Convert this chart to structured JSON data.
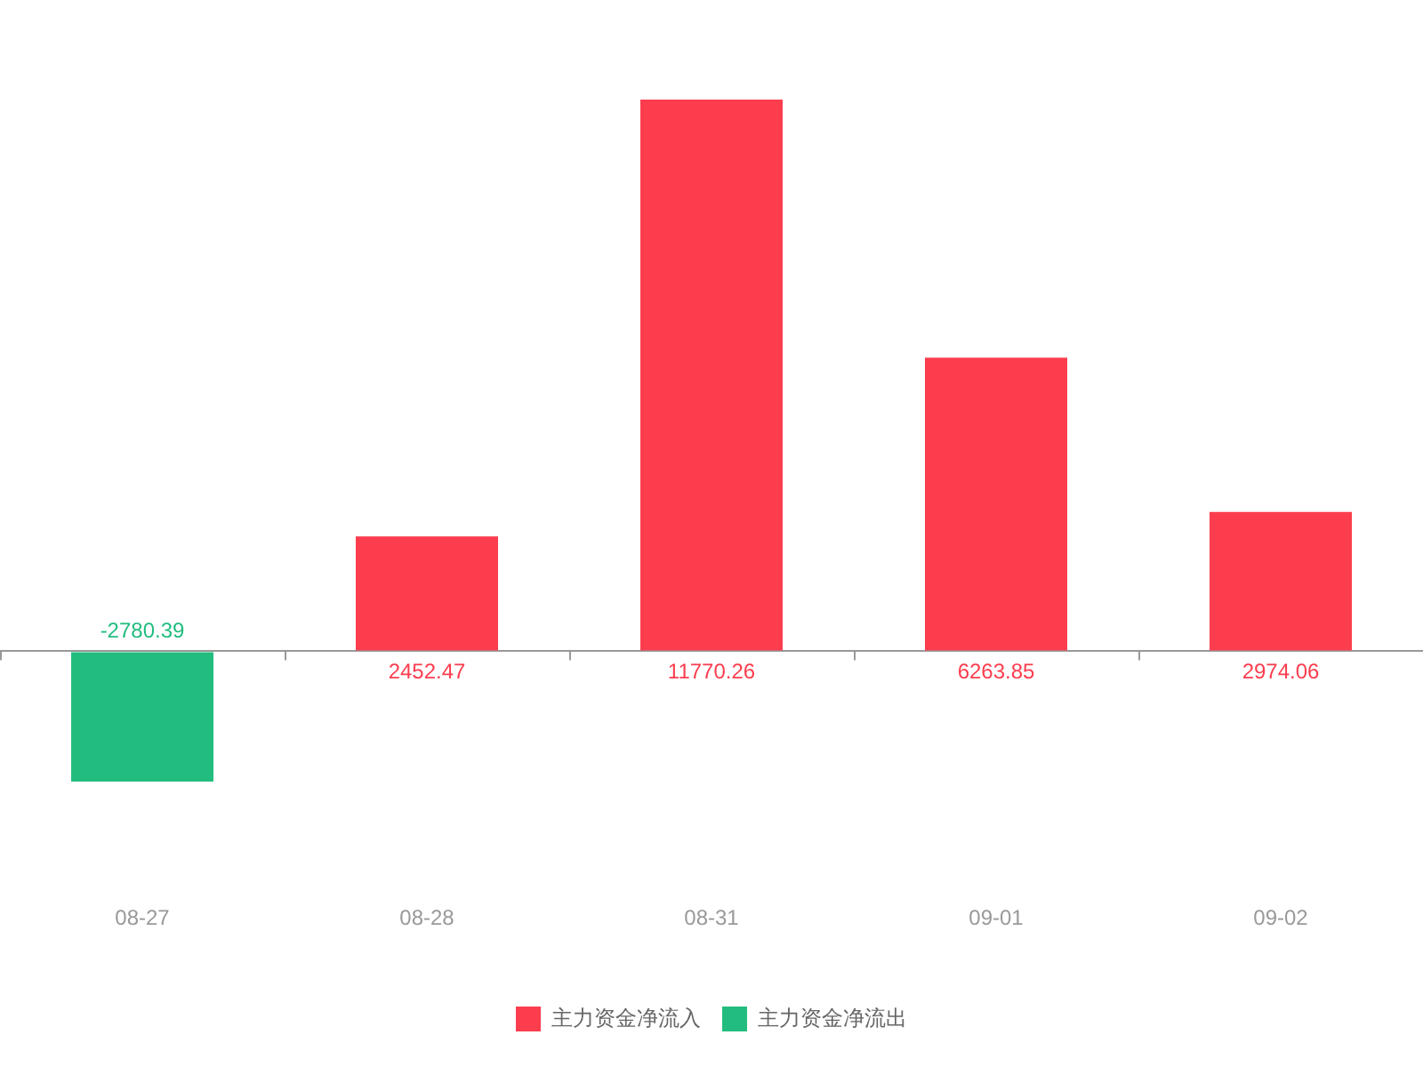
{
  "chart_data": {
    "type": "bar",
    "categories": [
      "08-27",
      "08-28",
      "08-31",
      "09-01",
      "09-02"
    ],
    "series": [
      {
        "name": "主力资金净流入",
        "color": "#fc3d4e",
        "values": [
          null,
          2452.47,
          11770.26,
          6263.85,
          2974.06
        ]
      },
      {
        "name": "主力资金净流出",
        "color": "#22bd7e",
        "values": [
          -2780.39,
          null,
          null,
          null,
          null
        ]
      }
    ],
    "stacked": true,
    "data_labels": true,
    "legend": "bottom"
  }
}
